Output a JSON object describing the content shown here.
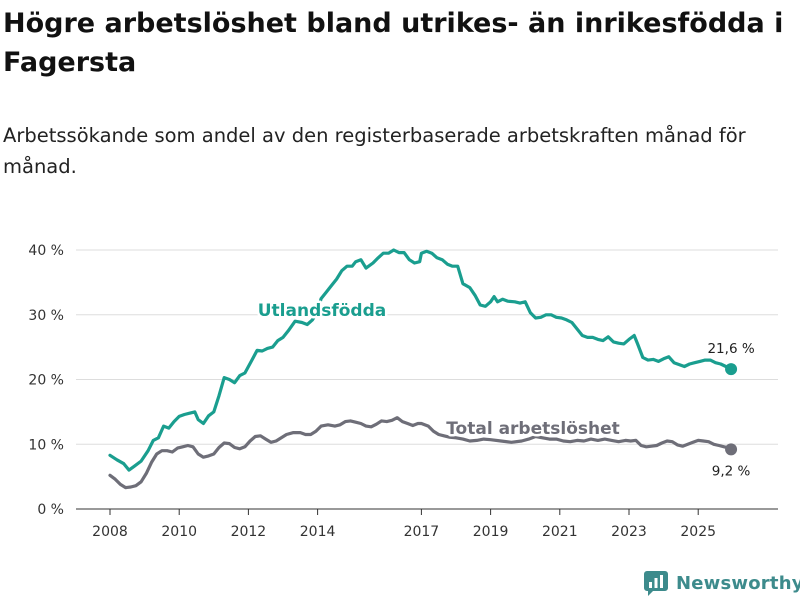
{
  "title": "Högre arbetslöshet bland utrikes- än inrikesfödda i Fagersta",
  "subtitle": "Arbetssökande som andel av den registerbaserade arbetskraften månad för månad.",
  "brand": "Newsworthy",
  "colors": {
    "foreign": "#1a9e8f",
    "total": "#6e6e78",
    "grid": "#dddddd"
  },
  "chart_data": {
    "type": "line",
    "title": "Högre arbetslöshet bland utrikes- än inrikesfödda i Fagersta",
    "xlabel": "",
    "ylabel": "",
    "ylim": [
      0,
      40
    ],
    "xlim": [
      2008,
      2026.1
    ],
    "y_ticks": [
      0,
      10,
      20,
      30,
      40
    ],
    "y_tick_labels": [
      "0 %",
      "10 %",
      "20 %",
      "30 %",
      "40 %"
    ],
    "x_ticks": [
      2008,
      2010,
      2012,
      2014,
      2017,
      2019,
      2021,
      2023,
      2025
    ],
    "x_tick_labels": [
      "2008",
      "2010",
      "2012",
      "2014",
      "2017",
      "2019",
      "2021",
      "2023",
      "2025"
    ],
    "series": [
      {
        "name": "Utlandsfödda",
        "end_label": "21,6 %",
        "points": [
          [
            2008.0,
            8.3
          ],
          [
            2008.2,
            7.6
          ],
          [
            2008.4,
            7.0
          ],
          [
            2008.55,
            6.0
          ],
          [
            2008.7,
            6.6
          ],
          [
            2008.9,
            7.4
          ],
          [
            2009.1,
            9.0
          ],
          [
            2009.25,
            10.6
          ],
          [
            2009.4,
            11.0
          ],
          [
            2009.55,
            12.8
          ],
          [
            2009.7,
            12.5
          ],
          [
            2009.85,
            13.5
          ],
          [
            2010.0,
            14.3
          ],
          [
            2010.15,
            14.6
          ],
          [
            2010.3,
            14.8
          ],
          [
            2010.45,
            15.0
          ],
          [
            2010.55,
            13.8
          ],
          [
            2010.7,
            13.2
          ],
          [
            2010.85,
            14.4
          ],
          [
            2011.0,
            15.0
          ],
          [
            2011.15,
            17.5
          ],
          [
            2011.3,
            20.3
          ],
          [
            2011.45,
            20.0
          ],
          [
            2011.6,
            19.5
          ],
          [
            2011.75,
            20.6
          ],
          [
            2011.9,
            21.0
          ],
          [
            2012.1,
            23.0
          ],
          [
            2012.25,
            24.5
          ],
          [
            2012.4,
            24.4
          ],
          [
            2012.55,
            24.8
          ],
          [
            2012.7,
            25.0
          ],
          [
            2012.85,
            26.0
          ],
          [
            2013.0,
            26.5
          ],
          [
            2013.15,
            27.5
          ],
          [
            2013.35,
            29.0
          ],
          [
            2013.55,
            28.8
          ],
          [
            2013.7,
            28.5
          ],
          [
            2013.85,
            29.2
          ],
          [
            2014.0,
            30.5
          ],
          [
            2014.1,
            32.5
          ],
          [
            2014.25,
            33.5
          ],
          [
            2014.4,
            34.5
          ],
          [
            2014.55,
            35.5
          ],
          [
            2014.7,
            36.8
          ],
          [
            2014.85,
            37.5
          ],
          [
            2015.0,
            37.5
          ],
          [
            2015.1,
            38.2
          ],
          [
            2015.25,
            38.5
          ],
          [
            2015.4,
            37.2
          ],
          [
            2015.6,
            38.0
          ],
          [
            2015.75,
            38.8
          ],
          [
            2015.9,
            39.5
          ],
          [
            2016.05,
            39.5
          ],
          [
            2016.2,
            40.0
          ],
          [
            2016.35,
            39.6
          ],
          [
            2016.5,
            39.6
          ],
          [
            2016.65,
            38.5
          ],
          [
            2016.8,
            38.0
          ],
          [
            2016.95,
            38.2
          ],
          [
            2017.0,
            39.5
          ],
          [
            2017.15,
            39.8
          ],
          [
            2017.3,
            39.5
          ],
          [
            2017.45,
            38.8
          ],
          [
            2017.6,
            38.5
          ],
          [
            2017.75,
            37.8
          ],
          [
            2017.9,
            37.5
          ],
          [
            2018.05,
            37.5
          ],
          [
            2018.2,
            34.8
          ],
          [
            2018.4,
            34.2
          ],
          [
            2018.55,
            33.0
          ],
          [
            2018.7,
            31.5
          ],
          [
            2018.85,
            31.3
          ],
          [
            2019.0,
            32.0
          ],
          [
            2019.1,
            32.8
          ],
          [
            2019.2,
            32.0
          ],
          [
            2019.35,
            32.4
          ],
          [
            2019.5,
            32.1
          ],
          [
            2019.7,
            32.0
          ],
          [
            2019.85,
            31.8
          ],
          [
            2020.0,
            32.0
          ],
          [
            2020.15,
            30.3
          ],
          [
            2020.3,
            29.5
          ],
          [
            2020.45,
            29.6
          ],
          [
            2020.6,
            30.0
          ],
          [
            2020.75,
            30.0
          ],
          [
            2020.9,
            29.6
          ],
          [
            2021.05,
            29.5
          ],
          [
            2021.2,
            29.2
          ],
          [
            2021.35,
            28.8
          ],
          [
            2021.5,
            27.8
          ],
          [
            2021.65,
            26.8
          ],
          [
            2021.8,
            26.5
          ],
          [
            2021.95,
            26.5
          ],
          [
            2022.1,
            26.2
          ],
          [
            2022.25,
            26.0
          ],
          [
            2022.4,
            26.6
          ],
          [
            2022.55,
            25.8
          ],
          [
            2022.7,
            25.6
          ],
          [
            2022.85,
            25.5
          ],
          [
            2023.0,
            26.2
          ],
          [
            2023.15,
            26.8
          ],
          [
            2023.25,
            25.5
          ],
          [
            2023.4,
            23.4
          ],
          [
            2023.55,
            23.0
          ],
          [
            2023.7,
            23.1
          ],
          [
            2023.85,
            22.8
          ],
          [
            2024.0,
            23.2
          ],
          [
            2024.15,
            23.5
          ],
          [
            2024.3,
            22.6
          ],
          [
            2024.45,
            22.3
          ],
          [
            2024.6,
            22.0
          ],
          [
            2024.75,
            22.4
          ],
          [
            2024.9,
            22.6
          ],
          [
            2025.05,
            22.8
          ],
          [
            2025.2,
            23.0
          ],
          [
            2025.35,
            23.0
          ],
          [
            2025.5,
            22.6
          ],
          [
            2025.65,
            22.4
          ],
          [
            2025.8,
            22.0
          ],
          [
            2025.95,
            21.6
          ]
        ]
      },
      {
        "name": "Total arbetslöshet",
        "end_label": "9,2 %",
        "points": [
          [
            2008.0,
            5.2
          ],
          [
            2008.15,
            4.6
          ],
          [
            2008.3,
            3.8
          ],
          [
            2008.45,
            3.3
          ],
          [
            2008.6,
            3.4
          ],
          [
            2008.75,
            3.6
          ],
          [
            2008.9,
            4.2
          ],
          [
            2009.05,
            5.5
          ],
          [
            2009.2,
            7.2
          ],
          [
            2009.35,
            8.5
          ],
          [
            2009.5,
            9.0
          ],
          [
            2009.65,
            9.0
          ],
          [
            2009.8,
            8.8
          ],
          [
            2009.95,
            9.4
          ],
          [
            2010.1,
            9.6
          ],
          [
            2010.25,
            9.8
          ],
          [
            2010.4,
            9.6
          ],
          [
            2010.55,
            8.5
          ],
          [
            2010.7,
            8.0
          ],
          [
            2010.85,
            8.2
          ],
          [
            2011.0,
            8.5
          ],
          [
            2011.15,
            9.5
          ],
          [
            2011.3,
            10.2
          ],
          [
            2011.45,
            10.1
          ],
          [
            2011.6,
            9.5
          ],
          [
            2011.75,
            9.3
          ],
          [
            2011.9,
            9.6
          ],
          [
            2012.05,
            10.5
          ],
          [
            2012.2,
            11.2
          ],
          [
            2012.35,
            11.3
          ],
          [
            2012.5,
            10.8
          ],
          [
            2012.65,
            10.3
          ],
          [
            2012.8,
            10.5
          ],
          [
            2012.95,
            11.0
          ],
          [
            2013.1,
            11.5
          ],
          [
            2013.3,
            11.8
          ],
          [
            2013.5,
            11.8
          ],
          [
            2013.65,
            11.5
          ],
          [
            2013.8,
            11.5
          ],
          [
            2013.95,
            12.0
          ],
          [
            2014.1,
            12.8
          ],
          [
            2014.3,
            13.0
          ],
          [
            2014.5,
            12.8
          ],
          [
            2014.65,
            13.0
          ],
          [
            2014.8,
            13.5
          ],
          [
            2014.95,
            13.6
          ],
          [
            2015.1,
            13.4
          ],
          [
            2015.25,
            13.2
          ],
          [
            2015.4,
            12.8
          ],
          [
            2015.55,
            12.7
          ],
          [
            2015.7,
            13.1
          ],
          [
            2015.85,
            13.6
          ],
          [
            2016.0,
            13.5
          ],
          [
            2016.15,
            13.7
          ],
          [
            2016.3,
            14.1
          ],
          [
            2016.45,
            13.5
          ],
          [
            2016.6,
            13.2
          ],
          [
            2016.75,
            12.9
          ],
          [
            2016.9,
            13.2
          ],
          [
            2017.0,
            13.2
          ],
          [
            2017.2,
            12.8
          ],
          [
            2017.35,
            12.0
          ],
          [
            2017.5,
            11.5
          ],
          [
            2017.65,
            11.3
          ],
          [
            2017.8,
            11.1
          ],
          [
            2018.0,
            11.0
          ],
          [
            2018.2,
            10.8
          ],
          [
            2018.4,
            10.5
          ],
          [
            2018.6,
            10.6
          ],
          [
            2018.8,
            10.8
          ],
          [
            2019.0,
            10.7
          ],
          [
            2019.3,
            10.5
          ],
          [
            2019.6,
            10.3
          ],
          [
            2019.9,
            10.5
          ],
          [
            2020.1,
            10.8
          ],
          [
            2020.3,
            11.2
          ],
          [
            2020.5,
            11.0
          ],
          [
            2020.7,
            10.8
          ],
          [
            2020.9,
            10.8
          ],
          [
            2021.1,
            10.5
          ],
          [
            2021.3,
            10.4
          ],
          [
            2021.5,
            10.6
          ],
          [
            2021.7,
            10.5
          ],
          [
            2021.9,
            10.8
          ],
          [
            2022.1,
            10.6
          ],
          [
            2022.3,
            10.8
          ],
          [
            2022.5,
            10.6
          ],
          [
            2022.7,
            10.4
          ],
          [
            2022.9,
            10.6
          ],
          [
            2023.05,
            10.5
          ],
          [
            2023.2,
            10.6
          ],
          [
            2023.35,
            9.8
          ],
          [
            2023.5,
            9.6
          ],
          [
            2023.65,
            9.7
          ],
          [
            2023.8,
            9.8
          ],
          [
            2023.95,
            10.2
          ],
          [
            2024.1,
            10.5
          ],
          [
            2024.25,
            10.4
          ],
          [
            2024.4,
            9.9
          ],
          [
            2024.55,
            9.7
          ],
          [
            2024.7,
            10.0
          ],
          [
            2024.85,
            10.3
          ],
          [
            2025.0,
            10.6
          ],
          [
            2025.15,
            10.5
          ],
          [
            2025.3,
            10.4
          ],
          [
            2025.45,
            10.0
          ],
          [
            2025.6,
            9.8
          ],
          [
            2025.75,
            9.6
          ],
          [
            2025.9,
            9.4
          ],
          [
            2025.95,
            9.2
          ]
        ]
      }
    ]
  }
}
